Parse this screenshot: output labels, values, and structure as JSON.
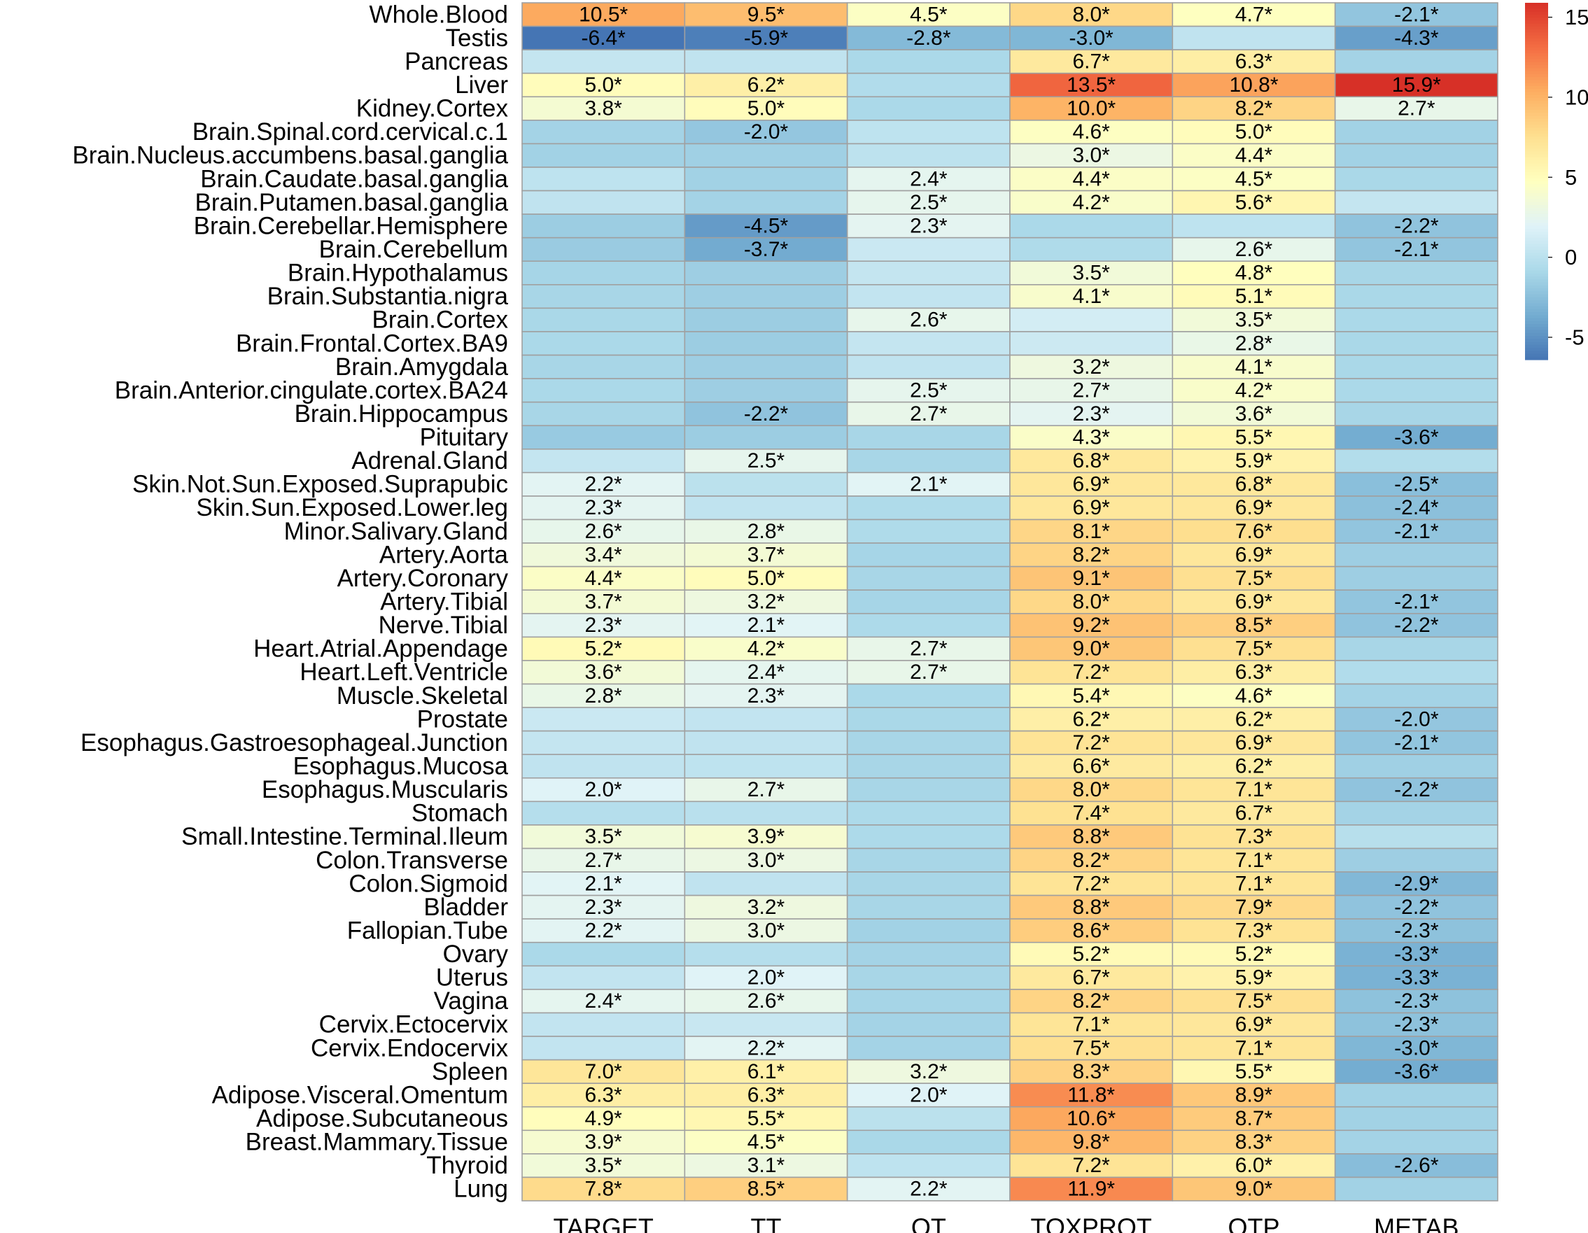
{
  "chart_data": {
    "type": "heatmap",
    "title": "",
    "columns": [
      "TARGET",
      "TT",
      "OT",
      "TOXPROT",
      "OTP",
      "METAB"
    ],
    "rows": [
      "Whole.Blood",
      "Testis",
      "Pancreas",
      "Liver",
      "Kidney.Cortex",
      "Brain.Spinal.cord.cervical.c.1",
      "Brain.Nucleus.accumbens.basal.ganglia",
      "Brain.Caudate.basal.ganglia",
      "Brain.Putamen.basal.ganglia",
      "Brain.Cerebellar.Hemisphere",
      "Brain.Cerebellum",
      "Brain.Hypothalamus",
      "Brain.Substantia.nigra",
      "Brain.Cortex",
      "Brain.Frontal.Cortex.BA9",
      "Brain.Amygdala",
      "Brain.Anterior.cingulate.cortex.BA24",
      "Brain.Hippocampus",
      "Pituitary",
      "Adrenal.Gland",
      "Skin.Not.Sun.Exposed.Suprapubic",
      "Skin.Sun.Exposed.Lower.leg",
      "Minor.Salivary.Gland",
      "Artery.Aorta",
      "Artery.Coronary",
      "Artery.Tibial",
      "Nerve.Tibial",
      "Heart.Atrial.Appendage",
      "Heart.Left.Ventricle",
      "Muscle.Skeletal",
      "Prostate",
      "Esophagus.Gastroesophageal.Junction",
      "Esophagus.Mucosa",
      "Esophagus.Muscularis",
      "Stomach",
      "Small.Intestine.Terminal.Ileum",
      "Colon.Transverse",
      "Colon.Sigmoid",
      "Bladder",
      "Fallopian.Tube",
      "Ovary",
      "Uterus",
      "Vagina",
      "Cervix.Ectocervix",
      "Cervix.Endocervix",
      "Spleen",
      "Adipose.Visceral.Omentum",
      "Adipose.Subcutaneous",
      "Breast.Mammary.Tissue",
      "Thyroid",
      "Lung"
    ],
    "values": [
      [
        10.5,
        9.5,
        4.5,
        8.0,
        4.7,
        -2.1
      ],
      [
        -6.4,
        -5.9,
        -2.8,
        -3.0,
        0.3,
        -4.3
      ],
      [
        0.5,
        0.3,
        -0.8,
        6.7,
        6.3,
        -1.2
      ],
      [
        5.0,
        6.2,
        -0.5,
        13.5,
        10.8,
        15.9
      ],
      [
        3.8,
        5.0,
        -0.8,
        10.0,
        8.2,
        2.7
      ],
      [
        -1.2,
        -2.0,
        0.2,
        4.6,
        5.0,
        -1.3
      ],
      [
        -1.3,
        -1.4,
        0.1,
        3.0,
        4.4,
        -1.3
      ],
      [
        0.2,
        -1.3,
        2.4,
        4.4,
        4.5,
        -0.9
      ],
      [
        0.3,
        -1.2,
        2.5,
        4.2,
        5.6,
        0.5
      ],
      [
        -1.6,
        -4.5,
        2.3,
        -0.8,
        0.2,
        -2.2
      ],
      [
        -1.7,
        -3.7,
        0.8,
        -0.6,
        2.6,
        -2.1
      ],
      [
        -1.1,
        -1.5,
        0.5,
        3.5,
        4.8,
        -1.0
      ],
      [
        -1.0,
        -1.5,
        0.4,
        4.1,
        5.1,
        -0.9
      ],
      [
        -0.9,
        -1.6,
        2.6,
        1.3,
        3.5,
        -0.8
      ],
      [
        -0.8,
        -1.6,
        0.5,
        0.9,
        2.8,
        -0.9
      ],
      [
        -1.0,
        -1.5,
        0.3,
        3.2,
        4.1,
        -0.9
      ],
      [
        -0.8,
        -1.5,
        2.5,
        2.7,
        4.2,
        -0.8
      ],
      [
        -1.0,
        -2.2,
        2.7,
        2.3,
        3.6,
        -1.0
      ],
      [
        -1.8,
        -1.6,
        -1.0,
        4.3,
        5.5,
        -3.6
      ],
      [
        0.5,
        2.5,
        -1.0,
        6.8,
        5.9,
        -0.4
      ],
      [
        2.2,
        0.0,
        2.1,
        6.9,
        6.8,
        -2.5
      ],
      [
        2.3,
        0.3,
        -0.6,
        6.9,
        6.9,
        -2.4
      ],
      [
        2.6,
        2.8,
        -0.6,
        8.1,
        7.6,
        -2.1
      ],
      [
        3.4,
        3.7,
        -1.1,
        8.2,
        6.9,
        -1.5
      ],
      [
        4.4,
        5.0,
        -1.0,
        9.1,
        7.5,
        -1.5
      ],
      [
        3.7,
        3.2,
        -1.1,
        8.0,
        6.9,
        -2.1
      ],
      [
        2.3,
        2.1,
        -0.7,
        9.2,
        8.5,
        -2.2
      ],
      [
        5.2,
        4.2,
        2.7,
        9.0,
        7.5,
        -1.0
      ],
      [
        3.6,
        2.4,
        2.7,
        7.2,
        6.3,
        -0.5
      ],
      [
        2.8,
        2.3,
        -0.8,
        5.4,
        4.6,
        -1.2
      ],
      [
        0.8,
        0.4,
        -0.9,
        6.2,
        6.2,
        -2.0
      ],
      [
        0.5,
        0.3,
        -1.0,
        7.2,
        6.9,
        -2.1
      ],
      [
        0.3,
        0.2,
        -1.0,
        6.6,
        6.2,
        -1.4
      ],
      [
        2.0,
        2.7,
        -1.0,
        8.0,
        7.1,
        -2.2
      ],
      [
        -0.3,
        -0.1,
        -0.7,
        7.4,
        6.7,
        -1.2
      ],
      [
        3.5,
        3.9,
        -0.7,
        8.8,
        7.3,
        -0.2
      ],
      [
        2.7,
        3.0,
        -1.0,
        8.2,
        7.1,
        -1.5
      ],
      [
        2.1,
        0.3,
        -1.0,
        7.2,
        7.1,
        -2.9
      ],
      [
        2.3,
        3.2,
        -1.0,
        8.8,
        7.9,
        -2.2
      ],
      [
        2.2,
        3.0,
        -1.3,
        8.6,
        7.3,
        -2.3
      ],
      [
        -0.8,
        -0.3,
        -1.2,
        5.2,
        5.2,
        -3.3
      ],
      [
        0.4,
        2.0,
        -1.0,
        6.7,
        5.9,
        -3.3
      ],
      [
        2.4,
        2.6,
        -1.1,
        8.2,
        7.5,
        -2.3
      ],
      [
        0.4,
        0.7,
        -1.2,
        7.1,
        6.9,
        -2.3
      ],
      [
        0.4,
        2.2,
        -1.2,
        7.5,
        7.1,
        -3.0
      ],
      [
        7.0,
        6.1,
        3.2,
        8.3,
        5.5,
        -3.6
      ],
      [
        6.3,
        6.3,
        2.0,
        11.8,
        8.9,
        -1.3
      ],
      [
        4.9,
        5.5,
        0.0,
        10.6,
        8.7,
        -1.3
      ],
      [
        3.9,
        4.5,
        -0.9,
        9.8,
        8.3,
        -1.2
      ],
      [
        3.5,
        3.1,
        0.2,
        7.2,
        6.0,
        -2.6
      ],
      [
        7.8,
        8.5,
        2.2,
        11.9,
        9.0,
        -1.3
      ]
    ],
    "labels": [
      [
        "10.5*",
        "9.5*",
        "4.5*",
        "8.0*",
        "4.7*",
        "-2.1*"
      ],
      [
        "-6.4*",
        "-5.9*",
        "-2.8*",
        "-3.0*",
        "",
        "-4.3*"
      ],
      [
        "",
        "",
        "",
        "6.7*",
        "6.3*",
        ""
      ],
      [
        "5.0*",
        "6.2*",
        "",
        "13.5*",
        "10.8*",
        "15.9*"
      ],
      [
        "3.8*",
        "5.0*",
        "",
        "10.0*",
        "8.2*",
        "2.7*"
      ],
      [
        "",
        "-2.0*",
        "",
        "4.6*",
        "5.0*",
        ""
      ],
      [
        "",
        "",
        "",
        "3.0*",
        "4.4*",
        ""
      ],
      [
        "",
        "",
        "2.4*",
        "4.4*",
        "4.5*",
        ""
      ],
      [
        "",
        "",
        "2.5*",
        "4.2*",
        "5.6*",
        ""
      ],
      [
        "",
        "-4.5*",
        "2.3*",
        "",
        "",
        "-2.2*"
      ],
      [
        "",
        "-3.7*",
        "",
        "",
        "2.6*",
        "-2.1*"
      ],
      [
        "",
        "",
        "",
        "3.5*",
        "4.8*",
        ""
      ],
      [
        "",
        "",
        "",
        "4.1*",
        "5.1*",
        ""
      ],
      [
        "",
        "",
        "2.6*",
        "",
        "3.5*",
        ""
      ],
      [
        "",
        "",
        "",
        "",
        "2.8*",
        ""
      ],
      [
        "",
        "",
        "",
        "3.2*",
        "4.1*",
        ""
      ],
      [
        "",
        "",
        "2.5*",
        "2.7*",
        "4.2*",
        ""
      ],
      [
        "",
        "-2.2*",
        "2.7*",
        "2.3*",
        "3.6*",
        ""
      ],
      [
        "",
        "",
        "",
        "4.3*",
        "5.5*",
        "-3.6*"
      ],
      [
        "",
        "2.5*",
        "",
        "6.8*",
        "5.9*",
        ""
      ],
      [
        "2.2*",
        "",
        "2.1*",
        "6.9*",
        "6.8*",
        "-2.5*"
      ],
      [
        "2.3*",
        "",
        "",
        "6.9*",
        "6.9*",
        "-2.4*"
      ],
      [
        "2.6*",
        "2.8*",
        "",
        "8.1*",
        "7.6*",
        "-2.1*"
      ],
      [
        "3.4*",
        "3.7*",
        "",
        "8.2*",
        "6.9*",
        ""
      ],
      [
        "4.4*",
        "5.0*",
        "",
        "9.1*",
        "7.5*",
        ""
      ],
      [
        "3.7*",
        "3.2*",
        "",
        "8.0*",
        "6.9*",
        "-2.1*"
      ],
      [
        "2.3*",
        "2.1*",
        "",
        "9.2*",
        "8.5*",
        "-2.2*"
      ],
      [
        "5.2*",
        "4.2*",
        "2.7*",
        "9.0*",
        "7.5*",
        ""
      ],
      [
        "3.6*",
        "2.4*",
        "2.7*",
        "7.2*",
        "6.3*",
        ""
      ],
      [
        "2.8*",
        "2.3*",
        "",
        "5.4*",
        "4.6*",
        ""
      ],
      [
        "",
        "",
        "",
        "6.2*",
        "6.2*",
        "-2.0*"
      ],
      [
        "",
        "",
        "",
        "7.2*",
        "6.9*",
        "-2.1*"
      ],
      [
        "",
        "",
        "",
        "6.6*",
        "6.2*",
        ""
      ],
      [
        "2.0*",
        "2.7*",
        "",
        "8.0*",
        "7.1*",
        "-2.2*"
      ],
      [
        "",
        "",
        "",
        "7.4*",
        "6.7*",
        ""
      ],
      [
        "3.5*",
        "3.9*",
        "",
        "8.8*",
        "7.3*",
        ""
      ],
      [
        "2.7*",
        "3.0*",
        "",
        "8.2*",
        "7.1*",
        ""
      ],
      [
        "2.1*",
        "",
        "",
        "7.2*",
        "7.1*",
        "-2.9*"
      ],
      [
        "2.3*",
        "3.2*",
        "",
        "8.8*",
        "7.9*",
        "-2.2*"
      ],
      [
        "2.2*",
        "3.0*",
        "",
        "8.6*",
        "7.3*",
        "-2.3*"
      ],
      [
        "",
        "",
        "",
        "5.2*",
        "5.2*",
        "-3.3*"
      ],
      [
        "",
        "2.0*",
        "",
        "6.7*",
        "5.9*",
        "-3.3*"
      ],
      [
        "2.4*",
        "2.6*",
        "",
        "8.2*",
        "7.5*",
        "-2.3*"
      ],
      [
        "",
        "",
        "",
        "7.1*",
        "6.9*",
        "-2.3*"
      ],
      [
        "",
        "2.2*",
        "",
        "7.5*",
        "7.1*",
        "-3.0*"
      ],
      [
        "7.0*",
        "6.1*",
        "3.2*",
        "8.3*",
        "5.5*",
        "-3.6*"
      ],
      [
        "6.3*",
        "6.3*",
        "2.0*",
        "11.8*",
        "8.9*",
        ""
      ],
      [
        "4.9*",
        "5.5*",
        "",
        "10.6*",
        "8.7*",
        ""
      ],
      [
        "3.9*",
        "4.5*",
        "",
        "9.8*",
        "8.3*",
        ""
      ],
      [
        "3.5*",
        "3.1*",
        "",
        "7.2*",
        "6.0*",
        "-2.6*"
      ],
      [
        "7.8*",
        "8.5*",
        "2.2*",
        "11.9*",
        "9.0*",
        ""
      ]
    ],
    "colorbar": {
      "range": [
        -6.4,
        15.9
      ],
      "ticks": [
        15,
        10,
        5,
        0,
        -5
      ],
      "tick_labels": [
        "15",
        "10",
        "5",
        "0",
        "-5"
      ]
    },
    "colors": {
      "scale": [
        "#4575b4",
        "#74add1",
        "#abd9e9",
        "#e0f3f8",
        "#ffffbf",
        "#fee090",
        "#fdae61",
        "#f46d43",
        "#d73027"
      ],
      "grid": "#a0a0a0"
    },
    "legend_position": "right",
    "grid": true
  }
}
